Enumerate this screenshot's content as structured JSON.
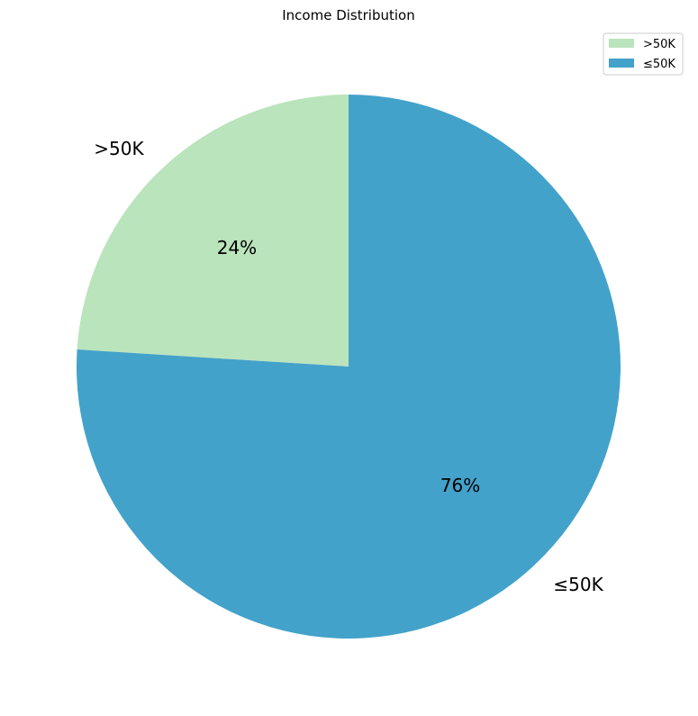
{
  "chart_data": {
    "type": "pie",
    "title": "Income Distribution",
    "start_angle_deg": 90,
    "direction": "counterclockwise",
    "slices": [
      {
        "label": ">50K",
        "value": 24,
        "pct_label": "24%",
        "color": "#bae4bc"
      },
      {
        "label": "≤50K",
        "value": 76,
        "pct_label": "76%",
        "color": "#43a2ca"
      }
    ],
    "legend": {
      "position": "top-right",
      "entries": [
        {
          "label": ">50K",
          "color": "#bae4bc"
        },
        {
          "label": "≤50K",
          "color": "#43a2ca"
        }
      ]
    }
  }
}
